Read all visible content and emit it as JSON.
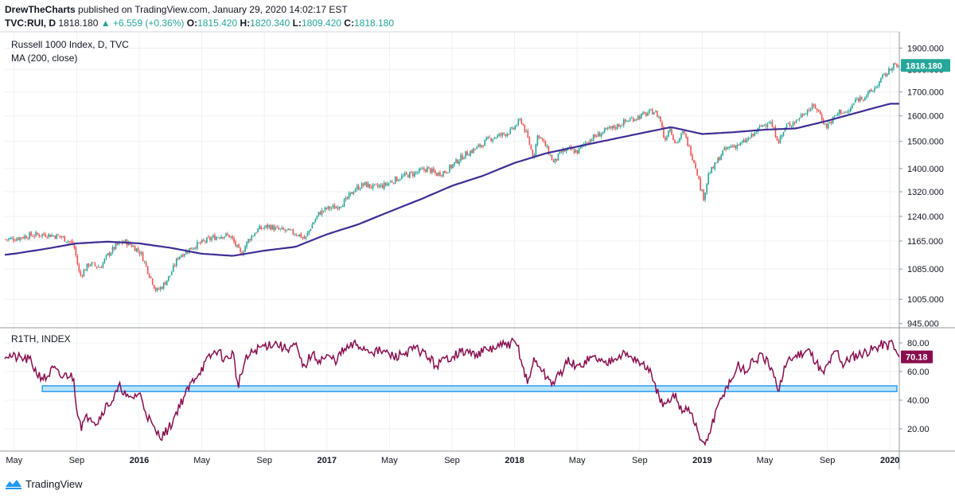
{
  "header": {
    "author": "DrewTheCharts",
    "published_text": "published on TradingView.com, January 29, 2020 14:02:17 EST",
    "symbol": "TVC:RUI, D",
    "last_price": "1818.180",
    "change_arrow": "▲",
    "change": "+6.559 (+0.36%)",
    "open_label": "O:",
    "open": "1815.420",
    "high_label": "H:",
    "high": "1820.340",
    "low_label": "L:",
    "low": "1809.420",
    "close_label": "C:",
    "close": "1818.180"
  },
  "footer": {
    "brand": "TradingView"
  },
  "colors": {
    "up": "#26a69a",
    "down": "#ef5350",
    "ma": "#3f2d94",
    "osc": "#880e4f",
    "band_stroke": "#2196f3",
    "band_fill": "#bbe4f7",
    "grid": "#eef0f3",
    "axis_text": "#131722",
    "price_badge": "#26a69a",
    "osc_badge": "#880e4f"
  },
  "chart_data": [
    {
      "type": "candlestick",
      "title": "Russell 1000 Index, D, TVC",
      "indicator_label": "MA (200, close)",
      "last_value_label": "1818.180",
      "y_scale": "log",
      "y_ticks": [
        "1900.000",
        "1800.000",
        "1700.000",
        "1600.000",
        "1500.000",
        "1400.000",
        "1320.000",
        "1240.000",
        "1165.000",
        "1085.000",
        "1005.000",
        "945.000"
      ],
      "y_tick_values": [
        1900,
        1800,
        1700,
        1600,
        1500,
        1400,
        1320,
        1240,
        1165,
        1085,
        1005,
        945
      ],
      "x_ticks": [
        "May",
        "Sep",
        "2016",
        "May",
        "Sep",
        "2017",
        "May",
        "Sep",
        "2018",
        "May",
        "Sep",
        "2019",
        "May",
        "Sep",
        "2020"
      ],
      "x_tick_positions": [
        0.0,
        4.0,
        8.0,
        12.0,
        16.0,
        20.0,
        24.0,
        28.0,
        32.0,
        36.0,
        40.0,
        44.0,
        48.0,
        52.0,
        56.0
      ],
      "x_range": [
        -0.6,
        56.6
      ],
      "y_range": [
        935,
        1980
      ],
      "close_path": [
        [
          -0.6,
          1170
        ],
        [
          0,
          1172
        ],
        [
          1,
          1182
        ],
        [
          2,
          1185
        ],
        [
          3,
          1178
        ],
        [
          3.8,
          1155
        ],
        [
          4.2,
          1065
        ],
        [
          4.8,
          1100
        ],
        [
          5.5,
          1090
        ],
        [
          6,
          1125
        ],
        [
          6.5,
          1150
        ],
        [
          7,
          1165
        ],
        [
          7.6,
          1150
        ],
        [
          8.1,
          1130
        ],
        [
          8.6,
          1075
        ],
        [
          9.1,
          1025
        ],
        [
          9.5,
          1040
        ],
        [
          10,
          1070
        ],
        [
          10.5,
          1120
        ],
        [
          11,
          1135
        ],
        [
          11.5,
          1150
        ],
        [
          12,
          1160
        ],
        [
          12.7,
          1175
        ],
        [
          13.3,
          1182
        ],
        [
          13.8,
          1180
        ],
        [
          14.2,
          1150
        ],
        [
          14.5,
          1125
        ],
        [
          15,
          1170
        ],
        [
          15.6,
          1200
        ],
        [
          16.3,
          1210
        ],
        [
          16.8,
          1200
        ],
        [
          17.4,
          1195
        ],
        [
          18.2,
          1185
        ],
        [
          18.6,
          1170
        ],
        [
          19,
          1210
        ],
        [
          19.5,
          1250
        ],
        [
          20,
          1265
        ],
        [
          20.6,
          1270
        ],
        [
          21.2,
          1290
        ],
        [
          21.8,
          1330
        ],
        [
          22.4,
          1345
        ],
        [
          23,
          1335
        ],
        [
          23.6,
          1340
        ],
        [
          24.3,
          1360
        ],
        [
          25,
          1375
        ],
        [
          25.7,
          1385
        ],
        [
          26.4,
          1400
        ],
        [
          27,
          1380
        ],
        [
          27.6,
          1390
        ],
        [
          28.2,
          1420
        ],
        [
          28.8,
          1450
        ],
        [
          29.6,
          1475
        ],
        [
          30.4,
          1510
        ],
        [
          31.2,
          1525
        ],
        [
          31.8,
          1540
        ],
        [
          32.4,
          1585
        ],
        [
          32.8,
          1520
        ],
        [
          33.2,
          1440
        ],
        [
          33.5,
          1530
        ],
        [
          34,
          1480
        ],
        [
          34.5,
          1420
        ],
        [
          35,
          1460
        ],
        [
          35.5,
          1470
        ],
        [
          36,
          1460
        ],
        [
          36.6,
          1500
        ],
        [
          37.2,
          1520
        ],
        [
          37.8,
          1540
        ],
        [
          38.4,
          1555
        ],
        [
          39,
          1575
        ],
        [
          39.6,
          1590
        ],
        [
          40.3,
          1605
        ],
        [
          40.9,
          1620
        ],
        [
          41.3,
          1590
        ],
        [
          41.6,
          1500
        ],
        [
          41.9,
          1560
        ],
        [
          42.3,
          1490
        ],
        [
          42.8,
          1535
        ],
        [
          43.2,
          1470
        ],
        [
          43.6,
          1405
        ],
        [
          43.9,
          1330
        ],
        [
          44.1,
          1300
        ],
        [
          44.4,
          1380
        ],
        [
          44.8,
          1410
        ],
        [
          45.3,
          1460
        ],
        [
          45.8,
          1480
        ],
        [
          46.5,
          1490
        ],
        [
          47.2,
          1520
        ],
        [
          47.8,
          1560
        ],
        [
          48.3,
          1580
        ],
        [
          48.6,
          1540
        ],
        [
          48.9,
          1500
        ],
        [
          49.4,
          1560
        ],
        [
          50,
          1580
        ],
        [
          50.6,
          1620
        ],
        [
          51.2,
          1640
        ],
        [
          51.6,
          1600
        ],
        [
          51.9,
          1555
        ],
        [
          52.4,
          1590
        ],
        [
          52.8,
          1620
        ],
        [
          53.3,
          1610
        ],
        [
          53.8,
          1665
        ],
        [
          54.3,
          1680
        ],
        [
          54.8,
          1700
        ],
        [
          55.2,
          1730
        ],
        [
          55.6,
          1770
        ],
        [
          56.0,
          1795
        ],
        [
          56.2,
          1830
        ],
        [
          56.4,
          1805
        ],
        [
          56.6,
          1818
        ]
      ],
      "ma_path": [
        [
          -0.6,
          1125
        ],
        [
          0,
          1128
        ],
        [
          2,
          1142
        ],
        [
          4,
          1158
        ],
        [
          6,
          1163
        ],
        [
          8,
          1158
        ],
        [
          10,
          1145
        ],
        [
          12,
          1128
        ],
        [
          14,
          1122
        ],
        [
          16,
          1137
        ],
        [
          18,
          1148
        ],
        [
          20,
          1185
        ],
        [
          22,
          1215
        ],
        [
          24,
          1255
        ],
        [
          26,
          1295
        ],
        [
          28,
          1340
        ],
        [
          30,
          1375
        ],
        [
          32,
          1420
        ],
        [
          34,
          1455
        ],
        [
          36,
          1480
        ],
        [
          38,
          1505
        ],
        [
          40,
          1530
        ],
        [
          42,
          1555
        ],
        [
          44,
          1528
        ],
        [
          46,
          1535
        ],
        [
          48,
          1545
        ],
        [
          50,
          1550
        ],
        [
          52,
          1580
        ],
        [
          54,
          1615
        ],
        [
          56,
          1650
        ]
      ]
    },
    {
      "type": "line",
      "title": "R1TH, INDEX",
      "last_value_label": "70.18",
      "y_ticks": [
        "80.00",
        "60.00",
        "40.00",
        "20.00"
      ],
      "y_tick_values": [
        80,
        60,
        40,
        20
      ],
      "y_range": [
        5,
        90
      ],
      "band": [
        46,
        50
      ],
      "path": [
        [
          -0.6,
          72
        ],
        [
          0,
          70
        ],
        [
          1,
          68
        ],
        [
          1.5,
          58
        ],
        [
          2,
          55
        ],
        [
          2.5,
          62
        ],
        [
          3,
          56
        ],
        [
          3.5,
          58
        ],
        [
          3.8,
          55
        ],
        [
          4,
          35
        ],
        [
          4.3,
          22
        ],
        [
          4.8,
          30
        ],
        [
          5.3,
          24
        ],
        [
          5.8,
          35
        ],
        [
          6.3,
          40
        ],
        [
          6.8,
          50
        ],
        [
          7.3,
          40
        ],
        [
          8,
          45
        ],
        [
          8.5,
          30
        ],
        [
          9,
          18
        ],
        [
          9.5,
          15
        ],
        [
          10,
          22
        ],
        [
          10.5,
          35
        ],
        [
          11,
          45
        ],
        [
          11.5,
          55
        ],
        [
          12,
          62
        ],
        [
          12.5,
          70
        ],
        [
          13,
          75
        ],
        [
          13.5,
          68
        ],
        [
          14,
          73
        ],
        [
          14.3,
          50
        ],
        [
          14.8,
          68
        ],
        [
          15.3,
          74
        ],
        [
          16,
          78
        ],
        [
          16.7,
          80
        ],
        [
          17.3,
          76
        ],
        [
          18,
          78
        ],
        [
          18.5,
          62
        ],
        [
          19,
          72
        ],
        [
          19.5,
          68
        ],
        [
          20,
          70
        ],
        [
          20.6,
          68
        ],
        [
          21,
          74
        ],
        [
          21.8,
          79
        ],
        [
          22.4,
          76
        ],
        [
          23,
          74
        ],
        [
          23.6,
          74
        ],
        [
          24.3,
          70
        ],
        [
          25,
          73
        ],
        [
          25.7,
          76
        ],
        [
          26.3,
          72
        ],
        [
          27,
          64
        ],
        [
          27.5,
          68
        ],
        [
          28.2,
          72
        ],
        [
          28.8,
          74
        ],
        [
          29.4,
          72
        ],
        [
          30,
          74
        ],
        [
          30.6,
          76
        ],
        [
          31.2,
          78
        ],
        [
          31.9,
          80
        ],
        [
          32.2,
          78
        ],
        [
          32.6,
          60
        ],
        [
          32.9,
          52
        ],
        [
          33.2,
          68
        ],
        [
          33.6,
          64
        ],
        [
          34,
          56
        ],
        [
          34.5,
          52
        ],
        [
          35,
          60
        ],
        [
          35.5,
          68
        ],
        [
          36,
          62
        ],
        [
          36.6,
          68
        ],
        [
          37.2,
          70
        ],
        [
          37.8,
          65
        ],
        [
          38.4,
          71
        ],
        [
          39,
          72
        ],
        [
          39.7,
          69
        ],
        [
          40.2,
          64
        ],
        [
          40.6,
          62
        ],
        [
          40.9,
          50
        ],
        [
          41.2,
          45
        ],
        [
          41.5,
          35
        ],
        [
          41.9,
          38
        ],
        [
          42.3,
          44
        ],
        [
          42.7,
          32
        ],
        [
          43,
          36
        ],
        [
          43.4,
          28
        ],
        [
          43.8,
          15
        ],
        [
          44,
          8
        ],
        [
          44.3,
          12
        ],
        [
          44.7,
          25
        ],
        [
          45.1,
          38
        ],
        [
          45.5,
          48
        ],
        [
          45.9,
          55
        ],
        [
          46.3,
          64
        ],
        [
          46.8,
          60
        ],
        [
          47.3,
          68
        ],
        [
          47.8,
          70
        ],
        [
          48.2,
          66
        ],
        [
          48.6,
          55
        ],
        [
          48.9,
          48
        ],
        [
          49.3,
          64
        ],
        [
          49.8,
          70
        ],
        [
          50.3,
          73
        ],
        [
          50.8,
          75
        ],
        [
          51.3,
          67
        ],
        [
          51.7,
          58
        ],
        [
          52.2,
          68
        ],
        [
          52.6,
          75
        ],
        [
          53,
          65
        ],
        [
          53.5,
          70
        ],
        [
          54,
          72
        ],
        [
          54.5,
          74
        ],
        [
          55,
          76
        ],
        [
          55.5,
          79
        ],
        [
          55.9,
          78
        ],
        [
          56.1,
          82
        ],
        [
          56.3,
          75
        ],
        [
          56.6,
          70
        ]
      ]
    }
  ]
}
